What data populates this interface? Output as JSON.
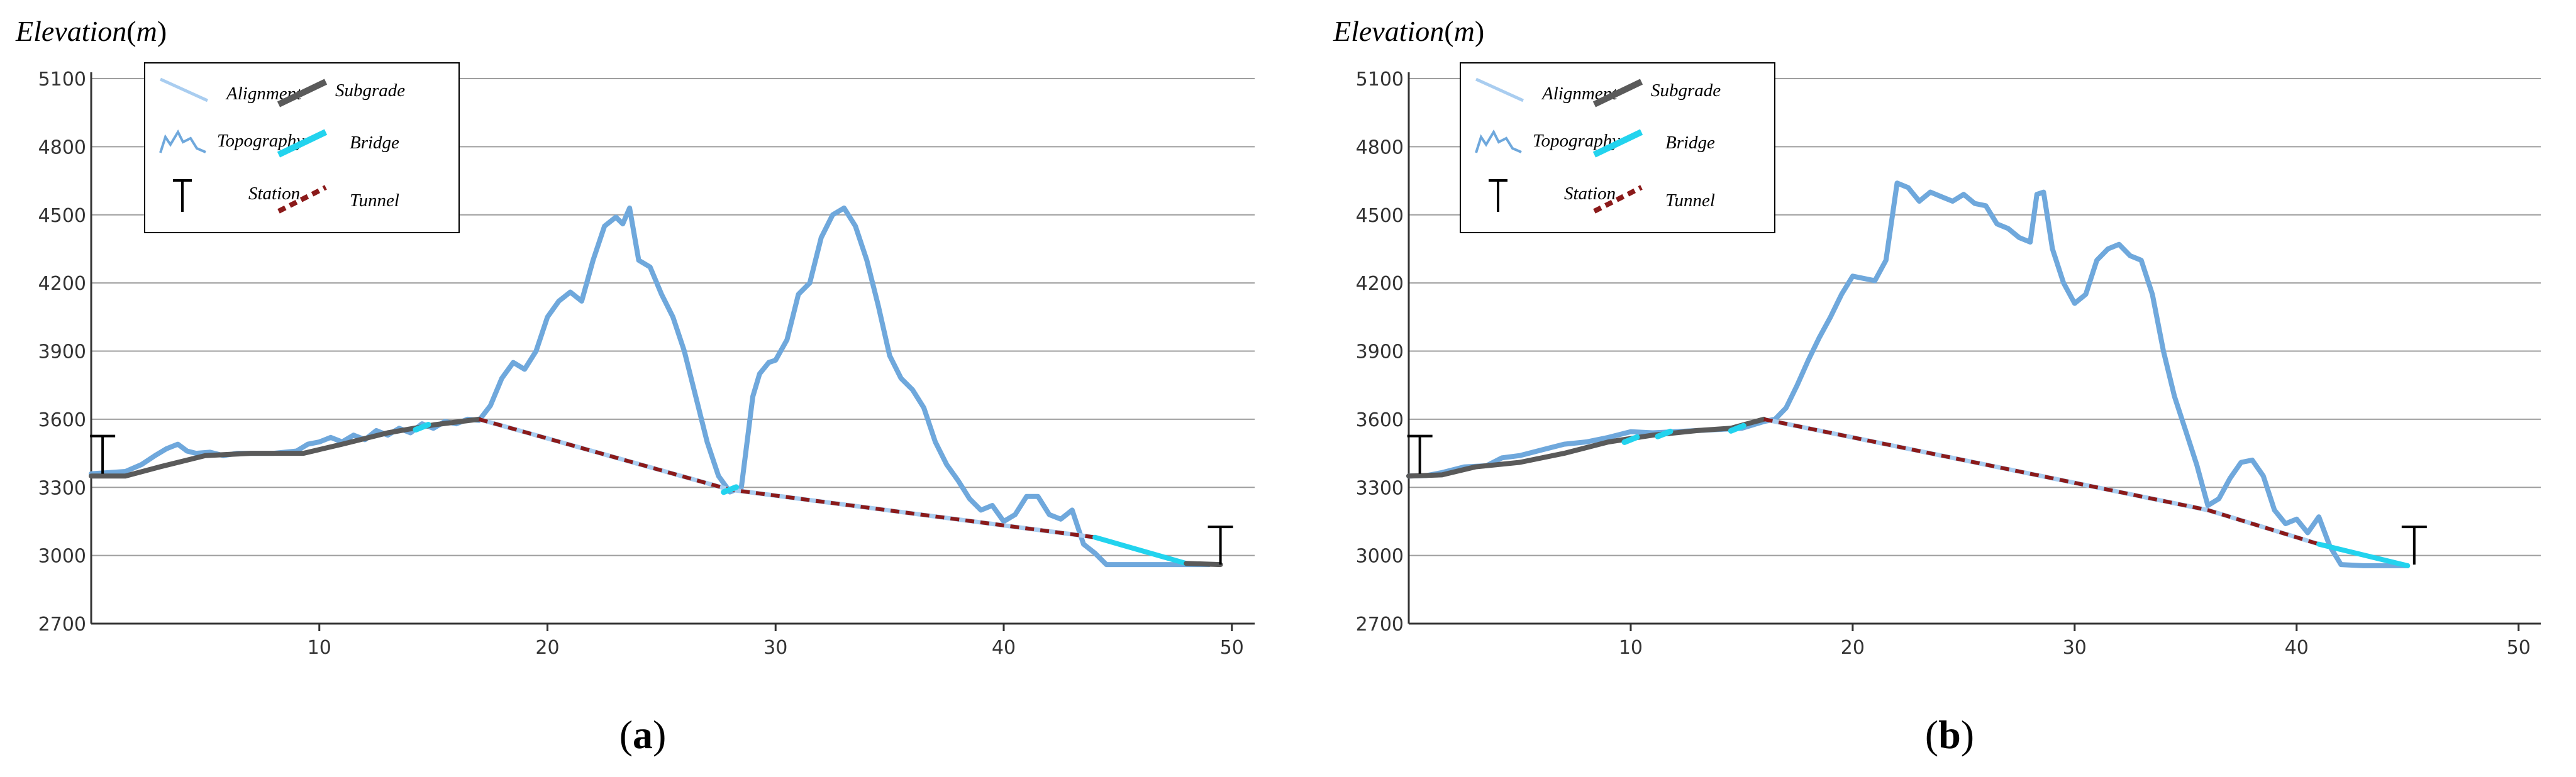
{
  "figure": {
    "colors": {
      "alignment": "#a9cdf0",
      "topography": "#6fa8dc",
      "subgrade": "#5a5a5a",
      "bridge": "#22d3ee",
      "tunnel": "#8b1a1a",
      "station": "#000000",
      "grid": "#9e9e9e",
      "axis": "#333333"
    },
    "legend": {
      "alignment": "Alignment",
      "topography": "Topography",
      "station": "Station",
      "subgrade": "Subgrade",
      "bridge": "Bridge",
      "tunnel": "Tunnel"
    },
    "ylabel_main": "Elevation",
    "ylabel_unit": "m",
    "ylabel_open": "(",
    "ylabel_close": ")"
  },
  "chart_data": [
    {
      "type": "line",
      "panel_label_open": "(",
      "panel_label": "a",
      "panel_label_close": ")",
      "xlim": [
        0,
        51
      ],
      "ylim": [
        2700,
        5100
      ],
      "xticks": [
        10,
        20,
        30,
        40,
        50
      ],
      "yticks": [
        2700,
        3000,
        3300,
        3600,
        3900,
        4200,
        4500,
        4800,
        5100
      ],
      "grid": true,
      "legend_position": "top-left",
      "series": [
        {
          "name": "Topography",
          "x": [
            0,
            0.8,
            1.5,
            2.2,
            2.8,
            3.3,
            3.8,
            4.2,
            4.6,
            5.2,
            5.8,
            6.4,
            7,
            8,
            9,
            9.5,
            10,
            10.5,
            11,
            11.5,
            12,
            12.5,
            13,
            13.5,
            14,
            14.5,
            15,
            15.5,
            16,
            16.5,
            17,
            17.5,
            18,
            18.5,
            19,
            19.5,
            20,
            20.5,
            21,
            21.5,
            22,
            22.5,
            23,
            23.3,
            23.6,
            24,
            24.5,
            25,
            25.5,
            26,
            26.5,
            27,
            27.5,
            28,
            28.5,
            29,
            29.3,
            29.7,
            30,
            30.5,
            31,
            31.5,
            32,
            32.5,
            33,
            33.5,
            34,
            34.5,
            35,
            35.5,
            36,
            36.5,
            37,
            37.5,
            38,
            38.5,
            39,
            39.5,
            40,
            40.5,
            41,
            41.5,
            42,
            42.5,
            43,
            43.5,
            44,
            44.5,
            45,
            46,
            47,
            48,
            49
          ],
          "y": [
            3360,
            3365,
            3370,
            3400,
            3440,
            3470,
            3490,
            3460,
            3450,
            3455,
            3440,
            3450,
            3450,
            3450,
            3460,
            3490,
            3500,
            3520,
            3500,
            3530,
            3510,
            3550,
            3530,
            3560,
            3540,
            3580,
            3560,
            3590,
            3580,
            3600,
            3595,
            3660,
            3780,
            3850,
            3820,
            3900,
            4050,
            4120,
            4160,
            4120,
            4300,
            4450,
            4490,
            4460,
            4530,
            4300,
            4270,
            4150,
            4050,
            3900,
            3700,
            3500,
            3350,
            3280,
            3300,
            3700,
            3800,
            3850,
            3860,
            3950,
            4150,
            4200,
            4400,
            4500,
            4530,
            4450,
            4300,
            4100,
            3880,
            3780,
            3730,
            3650,
            3500,
            3400,
            3330,
            3250,
            3200,
            3220,
            3150,
            3180,
            3260,
            3260,
            3180,
            3160,
            3200,
            3050,
            3010,
            2960,
            2960,
            2960,
            2960,
            2960,
            2960
          ]
        },
        {
          "name": "Alignment",
          "x": [
            0,
            1.5,
            3,
            5,
            7,
            9.3,
            11,
            13,
            15,
            17,
            28,
            44,
            48,
            49.5
          ],
          "y": [
            3350,
            3350,
            3390,
            3440,
            3450,
            3450,
            3490,
            3540,
            3575,
            3600,
            3290,
            3080,
            2965,
            2960
          ]
        },
        {
          "name": "Subgrade",
          "x": [
            0,
            1.5,
            3,
            5,
            7,
            9.3,
            11,
            13,
            15,
            17
          ],
          "y": [
            3350,
            3350,
            3390,
            3440,
            3450,
            3450,
            3490,
            3540,
            3575,
            3600
          ]
        },
        {
          "name": "Tunnel",
          "x": [
            17,
            28,
            44
          ],
          "y": [
            3600,
            3290,
            3080
          ]
        },
        {
          "name": "Bridge",
          "x": [
            44,
            48
          ],
          "y": [
            3080,
            2965
          ]
        },
        {
          "name": "Subgrade",
          "x": [
            48,
            49.5
          ],
          "y": [
            2965,
            2960
          ]
        }
      ],
      "stations": [
        {
          "x": 0.5,
          "y": 3360
        },
        {
          "x": 49.5,
          "y": 2960
        }
      ],
      "bridge_markers": [
        {
          "x": 14.5,
          "y": 3565
        },
        {
          "x": 28,
          "y": 3290
        }
      ]
    },
    {
      "type": "line",
      "panel_label_open": "(",
      "panel_label": "b",
      "panel_label_close": ")",
      "xlim": [
        0,
        51
      ],
      "ylim": [
        2700,
        5100
      ],
      "xticks": [
        10,
        20,
        30,
        40,
        50
      ],
      "yticks": [
        2700,
        3000,
        3300,
        3600,
        3900,
        4200,
        4500,
        4800,
        5100
      ],
      "grid": true,
      "legend_position": "top-left",
      "series": [
        {
          "name": "Topography",
          "x": [
            0,
            0.8,
            1.5,
            2.5,
            3.5,
            4.2,
            5,
            6,
            7,
            8,
            9,
            10,
            11,
            12,
            13,
            14,
            15,
            15.5,
            16,
            16.5,
            17,
            17.5,
            18,
            18.5,
            19,
            19.5,
            20,
            20.5,
            21,
            21.5,
            22,
            22.5,
            23,
            23.5,
            24,
            24.5,
            25,
            25.5,
            26,
            26.5,
            27,
            27.5,
            28,
            28.3,
            28.6,
            29,
            29.5,
            30,
            30.5,
            31,
            31.5,
            32,
            32.5,
            33,
            33.5,
            34,
            34.5,
            35,
            35.5,
            36,
            36.5,
            37,
            37.5,
            38,
            38.5,
            39,
            39.5,
            40,
            40.5,
            41,
            41.5,
            42,
            43,
            44,
            45
          ],
          "y": [
            3350,
            3352,
            3365,
            3390,
            3395,
            3430,
            3440,
            3465,
            3490,
            3500,
            3520,
            3545,
            3540,
            3545,
            3550,
            3555,
            3560,
            3575,
            3590,
            3600,
            3650,
            3750,
            3860,
            3960,
            4050,
            4150,
            4230,
            4220,
            4210,
            4300,
            4640,
            4620,
            4560,
            4600,
            4580,
            4560,
            4590,
            4550,
            4540,
            4460,
            4440,
            4400,
            4380,
            4590,
            4600,
            4350,
            4200,
            4110,
            4150,
            4300,
            4350,
            4370,
            4320,
            4300,
            4150,
            3900,
            3700,
            3550,
            3400,
            3220,
            3250,
            3340,
            3410,
            3420,
            3350,
            3200,
            3140,
            3160,
            3100,
            3170,
            3040,
            2960,
            2955,
            2955,
            2955
          ]
        },
        {
          "name": "Alignment",
          "x": [
            0,
            1.5,
            3,
            5,
            7,
            9,
            11,
            13,
            14.5,
            16,
            36,
            41,
            45
          ],
          "y": [
            3350,
            3355,
            3390,
            3410,
            3450,
            3500,
            3530,
            3550,
            3560,
            3600,
            3200,
            3050,
            2955
          ]
        },
        {
          "name": "Subgrade",
          "x": [
            0,
            1.5,
            3,
            5,
            7,
            9,
            11,
            13,
            14.5,
            16
          ],
          "y": [
            3350,
            3355,
            3390,
            3410,
            3450,
            3500,
            3530,
            3550,
            3560,
            3600
          ]
        },
        {
          "name": "Tunnel",
          "x": [
            16,
            36,
            41
          ],
          "y": [
            3600,
            3200,
            3050
          ]
        },
        {
          "name": "Bridge",
          "x": [
            41,
            45
          ],
          "y": [
            3050,
            2955
          ]
        }
      ],
      "stations": [
        {
          "x": 0.5,
          "y": 3360
        },
        {
          "x": 45.3,
          "y": 2960
        }
      ],
      "bridge_markers": [
        {
          "x": 10,
          "y": 3510
        },
        {
          "x": 11.5,
          "y": 3535
        },
        {
          "x": 14.8,
          "y": 3560
        }
      ]
    }
  ]
}
